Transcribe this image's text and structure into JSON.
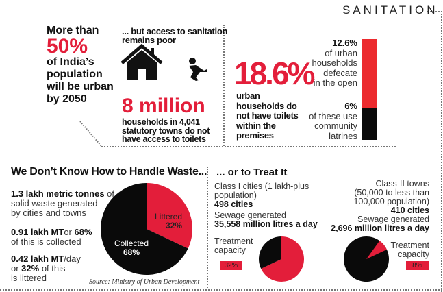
{
  "header": {
    "title": "SANITATION"
  },
  "urban": {
    "line1": "More than",
    "big": "50%",
    "line2": "of India’s",
    "line3": "population",
    "line4": "will be urban",
    "line5": "by 2050"
  },
  "access": {
    "intro1": "... but access to sanitation",
    "intro2": "remains poor",
    "big": "8 million",
    "d1": "households in 4,041",
    "d2": "statutory towns do not",
    "d3": "have access to toilets"
  },
  "toilets": {
    "big": "18.6%",
    "d1": "urban",
    "d2": "households do",
    "d3": "not have toilets",
    "d4": "within the",
    "d5": "premises",
    "open_pct": "12.6%",
    "open1": "of urban",
    "open2": "households",
    "open3": "defecate",
    "open4": "in the open",
    "comm_pct": "6%",
    "comm1": "of these use",
    "comm2": "community",
    "comm3": "latrines"
  },
  "waste": {
    "title": "We Don’t Know How to Handle Waste...",
    "s1b": "1.3 lakh metric tonnes",
    "s1a": " of",
    "s1c": "solid waste generated",
    "s1d": "by cities and towns",
    "s2b": "0.91 lakh MT",
    "s2a": "or ",
    "s2c": "68%",
    "s2d": "of this is collected",
    "s3b": "0.42 lakh MT",
    "s3a": "/day",
    "s3c": "or ",
    "s3d": "32%",
    "s3e": " of this",
    "s3f": "is littered",
    "source": "Source: Ministry of Urban Development"
  },
  "treat": {
    "title": "... or to Treat It",
    "c1a": "Class I cities (1 lakh-plus",
    "c1b": "population)",
    "c1n": "498 cities",
    "c1s": "Sewage generated",
    "c1v": "35,558 million litres a day",
    "c1t1": "Treatment",
    "c1t2": "capacity",
    "c2a": "Class-II towns",
    "c2b": "(50,000 to less than",
    "c2c": "100,000 population)",
    "c2n": "410 cities",
    "c2s": "Sewage generated",
    "c2v": "2,696 million litres a day",
    "c2t1": "Treatment",
    "c2t2": "capacity"
  },
  "colors": {
    "red": "#e31e3a",
    "black": "#0a0a0a"
  },
  "chart_data": [
    {
      "type": "bar",
      "title": "Urban households without toilets",
      "stacked": true,
      "series": [
        {
          "name": "defecate in the open",
          "value": 12.6
        },
        {
          "name": "use community latrines",
          "value": 6
        }
      ],
      "total": 18.6
    },
    {
      "type": "pie",
      "title": "Solid waste",
      "slices": [
        {
          "label": "Littered",
          "value": 32,
          "display": "32%"
        },
        {
          "label": "Collected",
          "value": 68,
          "display": "68%"
        }
      ]
    },
    {
      "type": "pie",
      "title": "Class I cities treatment capacity",
      "label": "32%",
      "slices": [
        {
          "label": "treated",
          "value": 32
        },
        {
          "label": "other",
          "value": 68
        }
      ]
    },
    {
      "type": "pie",
      "title": "Class-II towns treatment capacity",
      "label": "8%",
      "slices": [
        {
          "label": "treated",
          "value": 8
        },
        {
          "label": "other",
          "value": 92
        }
      ]
    }
  ]
}
